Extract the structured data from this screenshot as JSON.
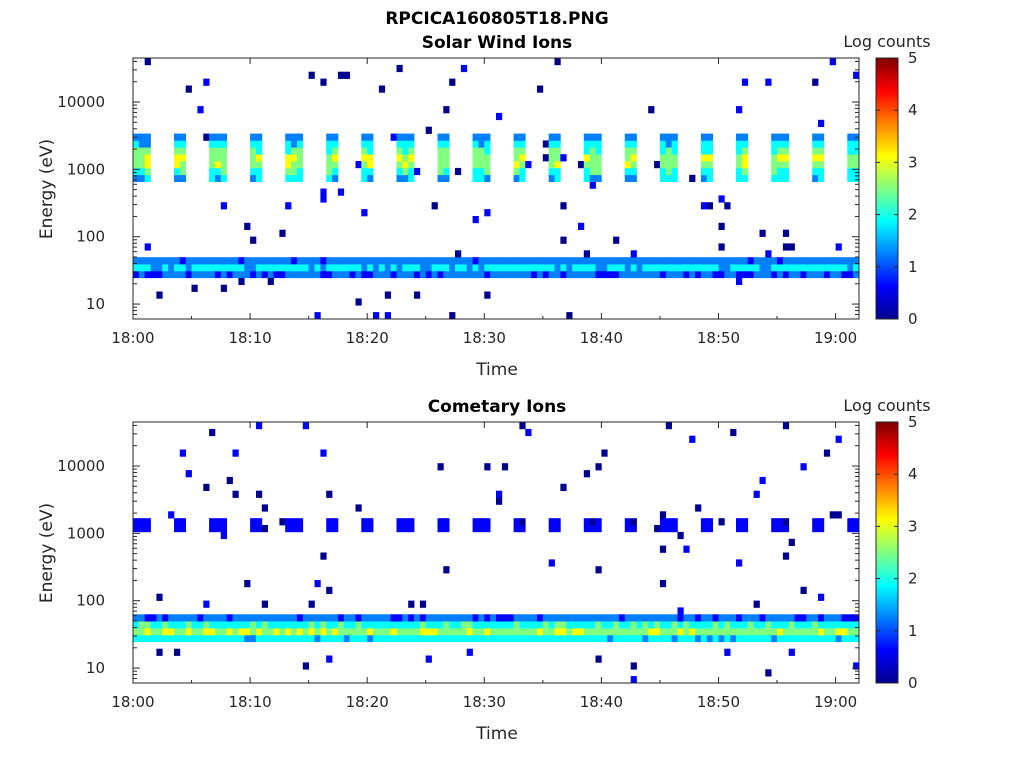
{
  "figure_title": "RPCICA160805T18.PNG",
  "colormap": [
    "#00008f",
    "#0000ff",
    "#0080ff",
    "#00ffff",
    "#80ff80",
    "#ffff00",
    "#ff8000",
    "#ff0000",
    "#800000"
  ],
  "chart_data": [
    {
      "type": "heatmap",
      "title": "Solar Wind Ions",
      "xlabel": "Time",
      "ylabel": "Energy (eV)",
      "colorbar_label": "Log counts",
      "colorbar_ticks": [
        "0",
        "1",
        "2",
        "3",
        "4",
        "5"
      ],
      "clim": [
        0,
        5
      ],
      "x_ticks": [
        "18:00",
        "18:10",
        "18:20",
        "18:30",
        "18:40",
        "18:50",
        "19:00"
      ],
      "x_range_min": [
        0,
        62
      ],
      "y_ticks": [
        "10",
        "100",
        "1000",
        "10000"
      ],
      "y_scale": "log",
      "y_range_ev": [
        6,
        45000
      ],
      "pulse_period_min": 3.2,
      "bands": [
        {
          "name": "solar-wind-beam",
          "energy_ev": [
            700,
            3500
          ],
          "peak_ev": 1400,
          "peak_log_counts": 3.0
        },
        {
          "name": "low-energy-band",
          "energy_ev": [
            26,
            55
          ],
          "peak_ev": 36,
          "peak_log_counts": 1.8
        }
      ]
    },
    {
      "type": "heatmap",
      "title": "Cometary Ions",
      "xlabel": "Time",
      "ylabel": "Energy (eV)",
      "colorbar_label": "Log counts",
      "colorbar_ticks": [
        "0",
        "1",
        "2",
        "3",
        "4",
        "5"
      ],
      "clim": [
        0,
        5
      ],
      "x_ticks": [
        "18:00",
        "18:10",
        "18:20",
        "18:30",
        "18:40",
        "18:50",
        "19:00"
      ],
      "x_range_min": [
        0,
        62
      ],
      "y_ticks": [
        "10",
        "100",
        "1000",
        "10000"
      ],
      "y_scale": "log",
      "y_range_ev": [
        6,
        45000
      ],
      "pulse_period_min": 3.2,
      "bands": [
        {
          "name": "pulsed-band",
          "energy_ev": [
            1050,
            1700
          ],
          "peak_ev": 1300,
          "peak_log_counts": 0.8
        },
        {
          "name": "low-energy-band",
          "energy_ev": [
            24,
            58
          ],
          "peak_ev": 36,
          "peak_log_counts": 2.8
        }
      ]
    }
  ]
}
